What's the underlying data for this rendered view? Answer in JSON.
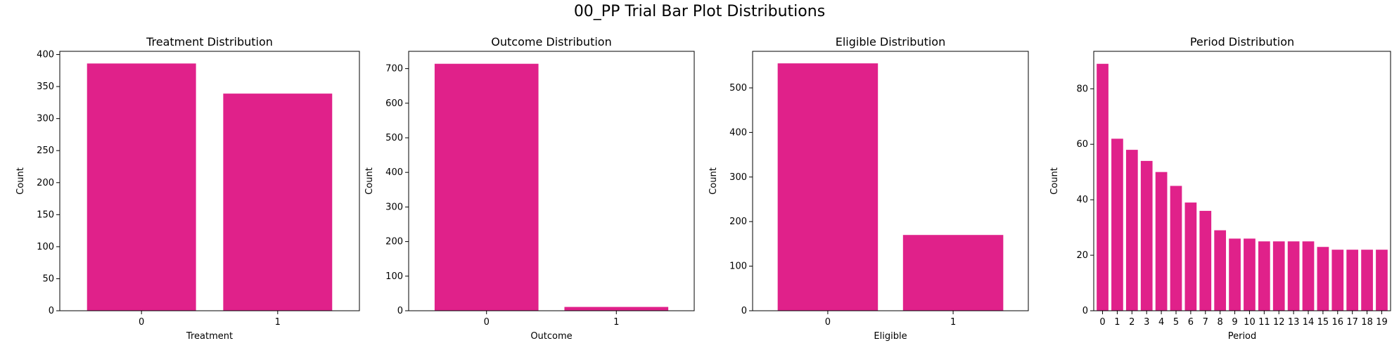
{
  "figure": {
    "title": "00_PP Trial Bar Plot Distributions"
  },
  "colors": {
    "bar": "#e0218a",
    "axis": "#000000",
    "background": "#ffffff"
  },
  "chart_data": [
    {
      "type": "bar",
      "title": "Treatment Distribution",
      "xlabel": "Treatment",
      "ylabel": "Count",
      "categories": [
        "0",
        "1"
      ],
      "values": [
        386,
        339
      ],
      "ylim": [
        0,
        405
      ],
      "yticks": [
        0,
        50,
        100,
        150,
        200,
        250,
        300,
        350,
        400
      ]
    },
    {
      "type": "bar",
      "title": "Outcome Distribution",
      "xlabel": "Outcome",
      "ylabel": "Count",
      "categories": [
        "0",
        "1"
      ],
      "values": [
        714,
        11
      ],
      "ylim": [
        0,
        750
      ],
      "yticks": [
        0,
        100,
        200,
        300,
        400,
        500,
        600,
        700
      ]
    },
    {
      "type": "bar",
      "title": "Eligible Distribution",
      "xlabel": "Eligible",
      "ylabel": "Count",
      "categories": [
        "0",
        "1"
      ],
      "values": [
        555,
        170
      ],
      "ylim": [
        0,
        582
      ],
      "yticks": [
        0,
        100,
        200,
        300,
        400,
        500
      ]
    },
    {
      "type": "bar",
      "title": "Period Distribution",
      "xlabel": "Period",
      "ylabel": "Count",
      "categories": [
        "0",
        "1",
        "2",
        "3",
        "4",
        "5",
        "6",
        "7",
        "8",
        "9",
        "10",
        "11",
        "12",
        "13",
        "14",
        "15",
        "16",
        "17",
        "18",
        "19"
      ],
      "values": [
        89,
        62,
        58,
        54,
        50,
        45,
        39,
        36,
        29,
        26,
        26,
        25,
        25,
        25,
        25,
        23,
        22,
        22,
        22,
        22
      ],
      "ylim": [
        0,
        93.5
      ],
      "yticks": [
        0,
        20,
        40,
        60,
        80
      ]
    }
  ]
}
